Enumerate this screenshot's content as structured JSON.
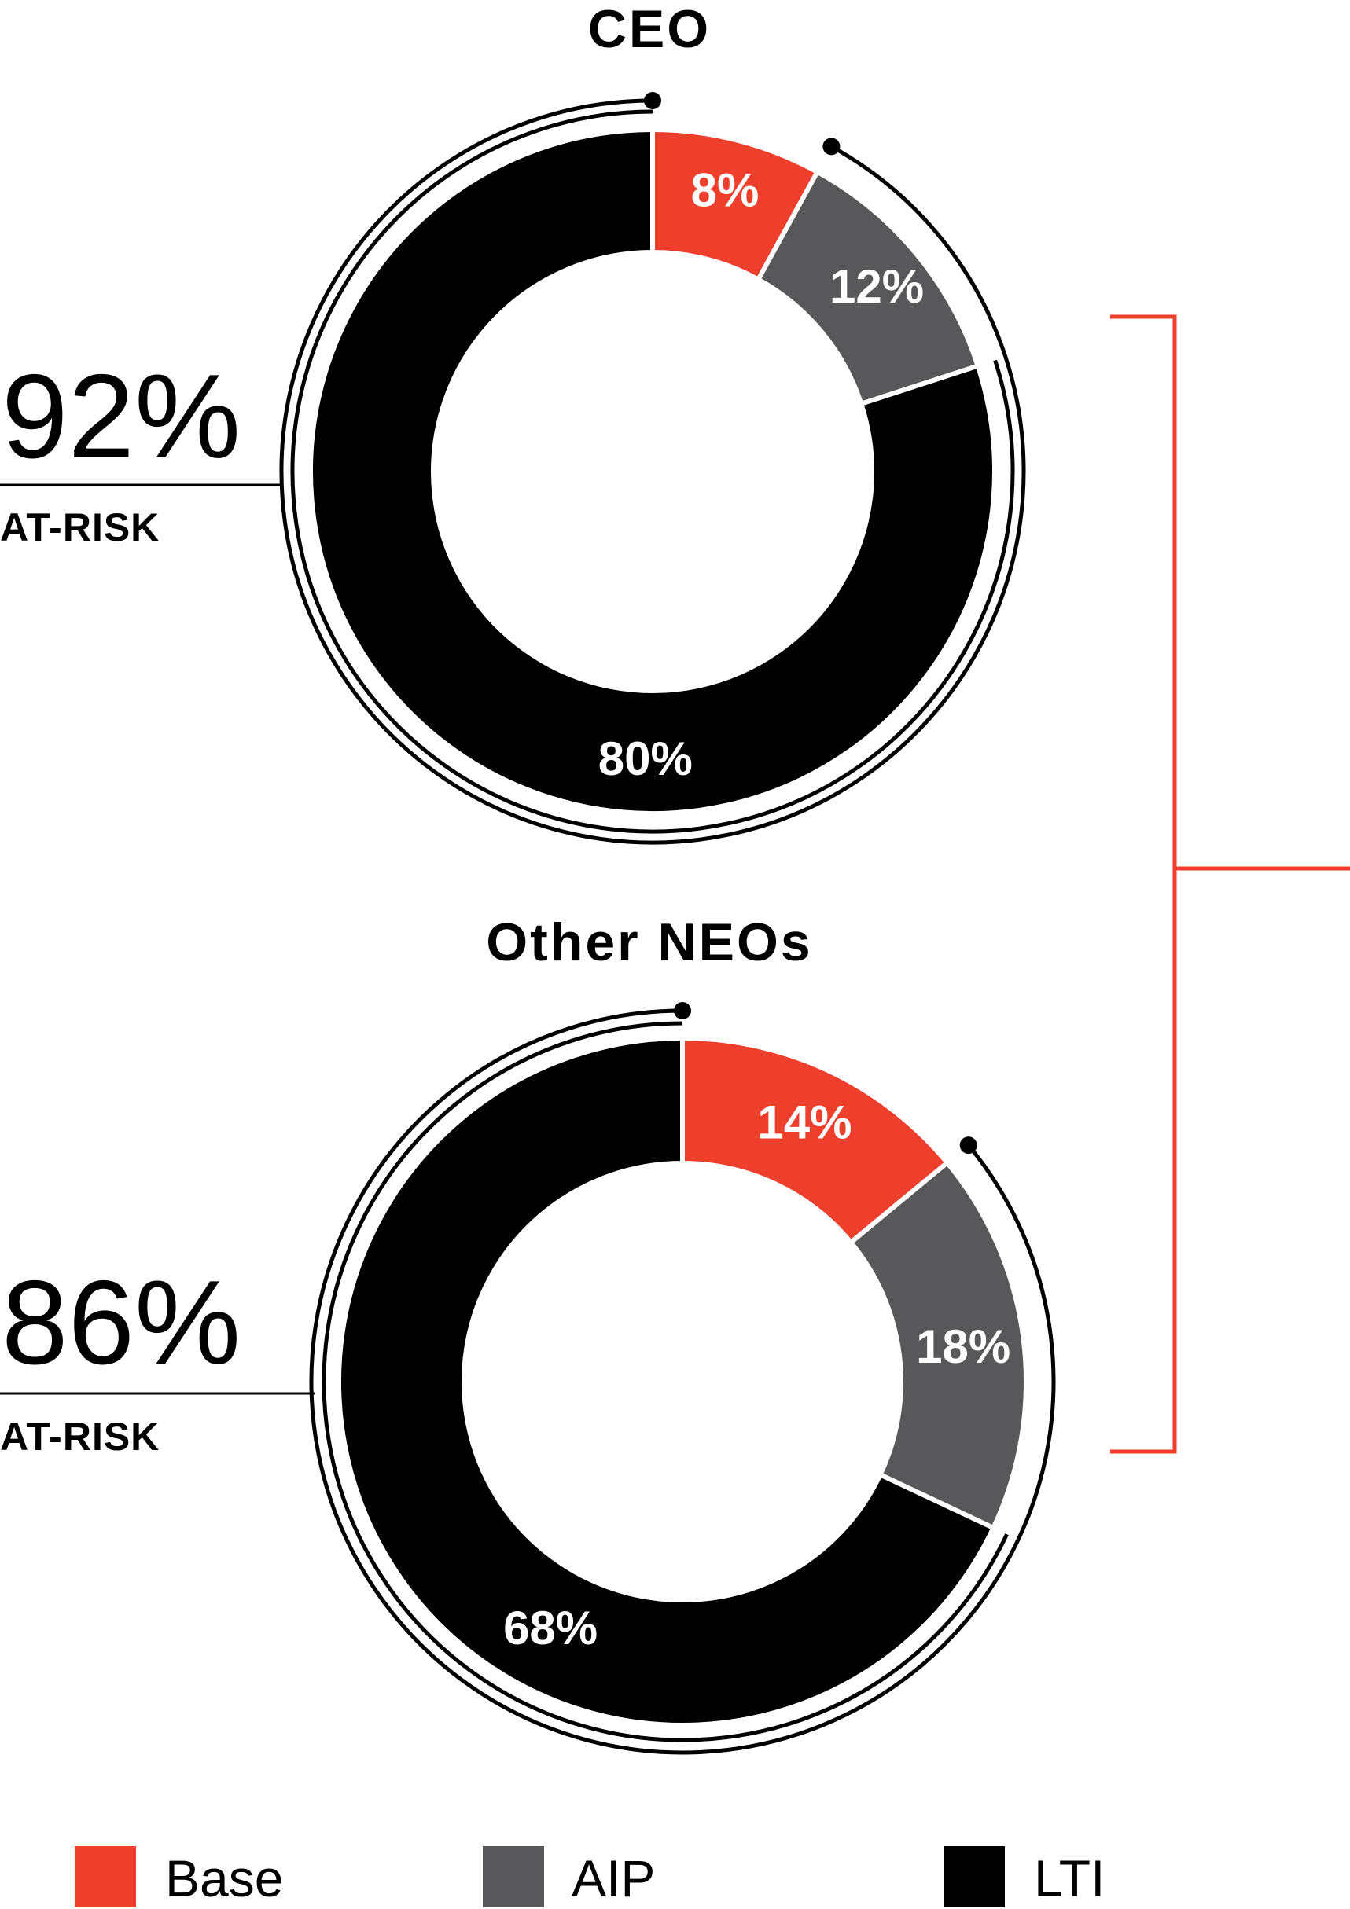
{
  "colors": {
    "base": "#ee3e2c",
    "aip": "#58585a",
    "lti": "#000000",
    "bracket": "#ee3e2c",
    "outline": "#000000"
  },
  "chart_data": [
    {
      "type": "pie",
      "title": "CEO",
      "at_risk": {
        "value": "92%",
        "label": "AT-RISK"
      },
      "slices": [
        {
          "name": "Base",
          "value": 8,
          "label": "8%"
        },
        {
          "name": "AIP",
          "value": 12,
          "label": "12%"
        },
        {
          "name": "LTI",
          "value": 80,
          "label": "80%"
        }
      ]
    },
    {
      "type": "pie",
      "title": "Other NEOs",
      "at_risk": {
        "value": "86%",
        "label": "AT-RISK"
      },
      "slices": [
        {
          "name": "Base",
          "value": 14,
          "label": "14%"
        },
        {
          "name": "AIP",
          "value": 18,
          "label": "18%"
        },
        {
          "name": "LTI",
          "value": 68,
          "label": "68%"
        }
      ]
    }
  ],
  "legend": [
    {
      "label": "Base",
      "color_key": "base"
    },
    {
      "label": "AIP",
      "color_key": "aip"
    },
    {
      "label": "LTI",
      "color_key": "lti"
    }
  ]
}
